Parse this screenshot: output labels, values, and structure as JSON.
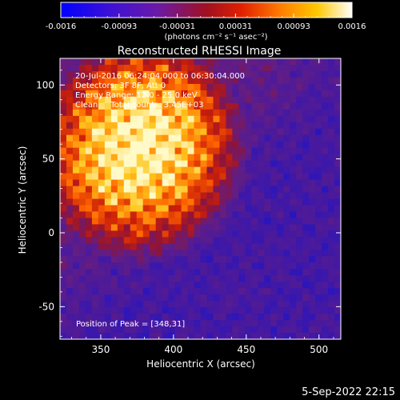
{
  "colorbar": {
    "tick_labels": [
      "-0.0016",
      "-0.00093",
      "-0.00031",
      "0.00031",
      "0.00093",
      "0.0016"
    ],
    "unit_label": "(photons cm⁻² s⁻¹ asec⁻²)"
  },
  "chart_data": {
    "type": "heatmap",
    "title": "Reconstructed RHESSI Image",
    "xlabel": "Heliocentric X (arcsec)",
    "ylabel": "Heliocentric Y (arcsec)",
    "xlim": [
      322,
      515
    ],
    "ylim": [
      -72,
      118
    ],
    "xticks": [
      "350",
      "400",
      "450",
      "500"
    ],
    "yticks": [
      "100",
      "50",
      "0",
      "-50"
    ],
    "zlim": [
      -0.0016,
      0.0016
    ],
    "colormap": "RHESSI red-temperature (blue → violet → red → orange → yellow → white)",
    "peak": [
      348,
      31
    ],
    "source_center_approx": [
      380,
      55
    ],
    "annotations": [
      "20-Jul-2016 06:24:04.000 to 06:30:04.000",
      "Detectors: 3F 8F, Att 0",
      "Energy Range: 12.0 - 25.0 keV",
      "Clean     Total counts: 3.45E+03"
    ],
    "peak_label": "Position of Peak = [348,31]"
  },
  "footer": {
    "timestamp": "5-Sep-2022 22:15"
  }
}
